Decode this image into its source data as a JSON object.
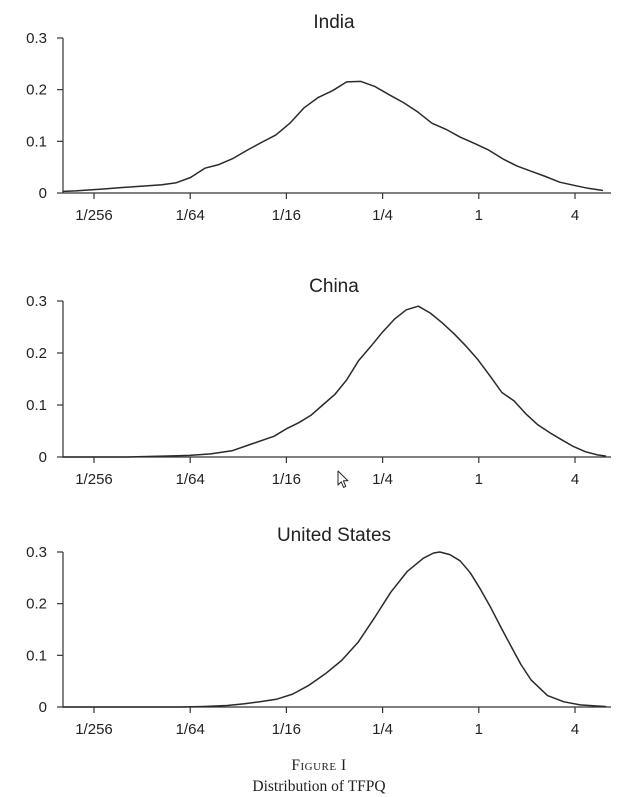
{
  "chart_data": [
    {
      "type": "line",
      "title": "India",
      "xscale": "log2",
      "x_tick_labels": [
        "1/256",
        "1/64",
        "1/16",
        "1/4",
        "1",
        "4"
      ],
      "x_tick_values": [
        0.00390625,
        0.015625,
        0.0625,
        0.25,
        1,
        4
      ],
      "xlim": [
        0.0025,
        6.5
      ],
      "y_tick_labels": [
        "0",
        "0.1",
        "0.2",
        "0.3"
      ],
      "y_tick_values": [
        0,
        0.1,
        0.2,
        0.3
      ],
      "ylim": [
        0,
        0.3
      ],
      "grid": false,
      "xlabel": "",
      "ylabel": "",
      "x": [
        0.0025,
        0.003,
        0.0037,
        0.0046,
        0.0056,
        0.0069,
        0.0085,
        0.0104,
        0.0128,
        0.0157,
        0.0193,
        0.0236,
        0.029,
        0.0356,
        0.0437,
        0.0536,
        0.0657,
        0.0807,
        0.099,
        0.1215,
        0.1491,
        0.1829,
        0.2244,
        0.2754,
        0.3379,
        0.4146,
        0.5087,
        0.6242,
        0.766,
        0.9398,
        1.1532,
        1.415,
        1.7363,
        2.1305,
        2.6141,
        3.2076,
        3.9358,
        4.8293,
        5.9257
      ],
      "y": [
        0.003,
        0.004,
        0.006,
        0.008,
        0.01,
        0.012,
        0.014,
        0.016,
        0.02,
        0.03,
        0.048,
        0.055,
        0.067,
        0.083,
        0.098,
        0.112,
        0.135,
        0.165,
        0.185,
        0.198,
        0.215,
        0.216,
        0.206,
        0.19,
        0.175,
        0.157,
        0.135,
        0.123,
        0.108,
        0.096,
        0.083,
        0.066,
        0.052,
        0.042,
        0.032,
        0.021,
        0.015,
        0.009,
        0.005
      ]
    },
    {
      "type": "line",
      "title": "China",
      "xscale": "log2",
      "x_tick_labels": [
        "1/256",
        "1/64",
        "1/16",
        "1/4",
        "1",
        "4"
      ],
      "x_tick_values": [
        0.00390625,
        0.015625,
        0.0625,
        0.25,
        1,
        4
      ],
      "xlim": [
        0.0025,
        6.5
      ],
      "y_tick_labels": [
        "0",
        "0.1",
        "0.2",
        "0.3"
      ],
      "y_tick_values": [
        0,
        0.1,
        0.2,
        0.3
      ],
      "ylim": [
        0,
        0.3
      ],
      "grid": false,
      "xlabel": "",
      "ylabel": "",
      "x": [
        0.0025,
        0.0034,
        0.0046,
        0.0062,
        0.0084,
        0.0114,
        0.0155,
        0.021,
        0.0285,
        0.0386,
        0.0524,
        0.0631,
        0.0747,
        0.0888,
        0.1055,
        0.1253,
        0.1488,
        0.1767,
        0.2099,
        0.2494,
        0.2963,
        0.352,
        0.418,
        0.4966,
        0.59,
        0.7008,
        0.8325,
        0.989,
        1.1748,
        1.3956,
        1.6578,
        1.9694,
        2.3394,
        2.779,
        3.3012,
        3.9215,
        4.6584,
        5.5338,
        6.2
      ],
      "y": [
        0,
        0,
        0,
        0,
        0.001,
        0.002,
        0.003,
        0.006,
        0.012,
        0.026,
        0.04,
        0.055,
        0.066,
        0.08,
        0.1,
        0.12,
        0.148,
        0.185,
        0.212,
        0.24,
        0.265,
        0.283,
        0.29,
        0.277,
        0.258,
        0.237,
        0.213,
        0.187,
        0.156,
        0.124,
        0.108,
        0.083,
        0.062,
        0.047,
        0.033,
        0.02,
        0.01,
        0.004,
        0.002
      ]
    },
    {
      "type": "line",
      "title": "United States",
      "xscale": "log2",
      "x_tick_labels": [
        "1/256",
        "1/64",
        "1/16",
        "1/4",
        "1",
        "4"
      ],
      "x_tick_values": [
        0.00390625,
        0.015625,
        0.0625,
        0.25,
        1,
        4
      ],
      "xlim": [
        0.0025,
        6.5
      ],
      "y_tick_labels": [
        "0",
        "0.1",
        "0.2",
        "0.3"
      ],
      "y_tick_values": [
        0,
        0.1,
        0.2,
        0.3
      ],
      "ylim": [
        0,
        0.3
      ],
      "grid": false,
      "xlabel": "",
      "ylabel": "",
      "x": [
        0.0025,
        0.0035,
        0.005,
        0.0069,
        0.0097,
        0.0136,
        0.019,
        0.0266,
        0.0337,
        0.0426,
        0.054,
        0.0683,
        0.0864,
        0.1094,
        0.1385,
        0.1753,
        0.2219,
        0.2809,
        0.3556,
        0.4502,
        0.5211,
        0.5699,
        0.6596,
        0.7637,
        0.884,
        1.0233,
        1.1846,
        1.3713,
        1.5874,
        1.8376,
        2.1272,
        2.6923,
        3.4075,
        4.3127,
        5.4585,
        6.2
      ],
      "y": [
        0,
        0,
        0,
        0,
        0,
        0,
        0.001,
        0.003,
        0.006,
        0.01,
        0.015,
        0.025,
        0.042,
        0.064,
        0.09,
        0.125,
        0.172,
        0.222,
        0.262,
        0.288,
        0.298,
        0.3,
        0.295,
        0.283,
        0.26,
        0.228,
        0.193,
        0.155,
        0.118,
        0.082,
        0.052,
        0.022,
        0.01,
        0.004,
        0.002,
        0.001
      ]
    }
  ],
  "caption": {
    "label": "Figure I",
    "text": "Distribution of TFPQ"
  }
}
